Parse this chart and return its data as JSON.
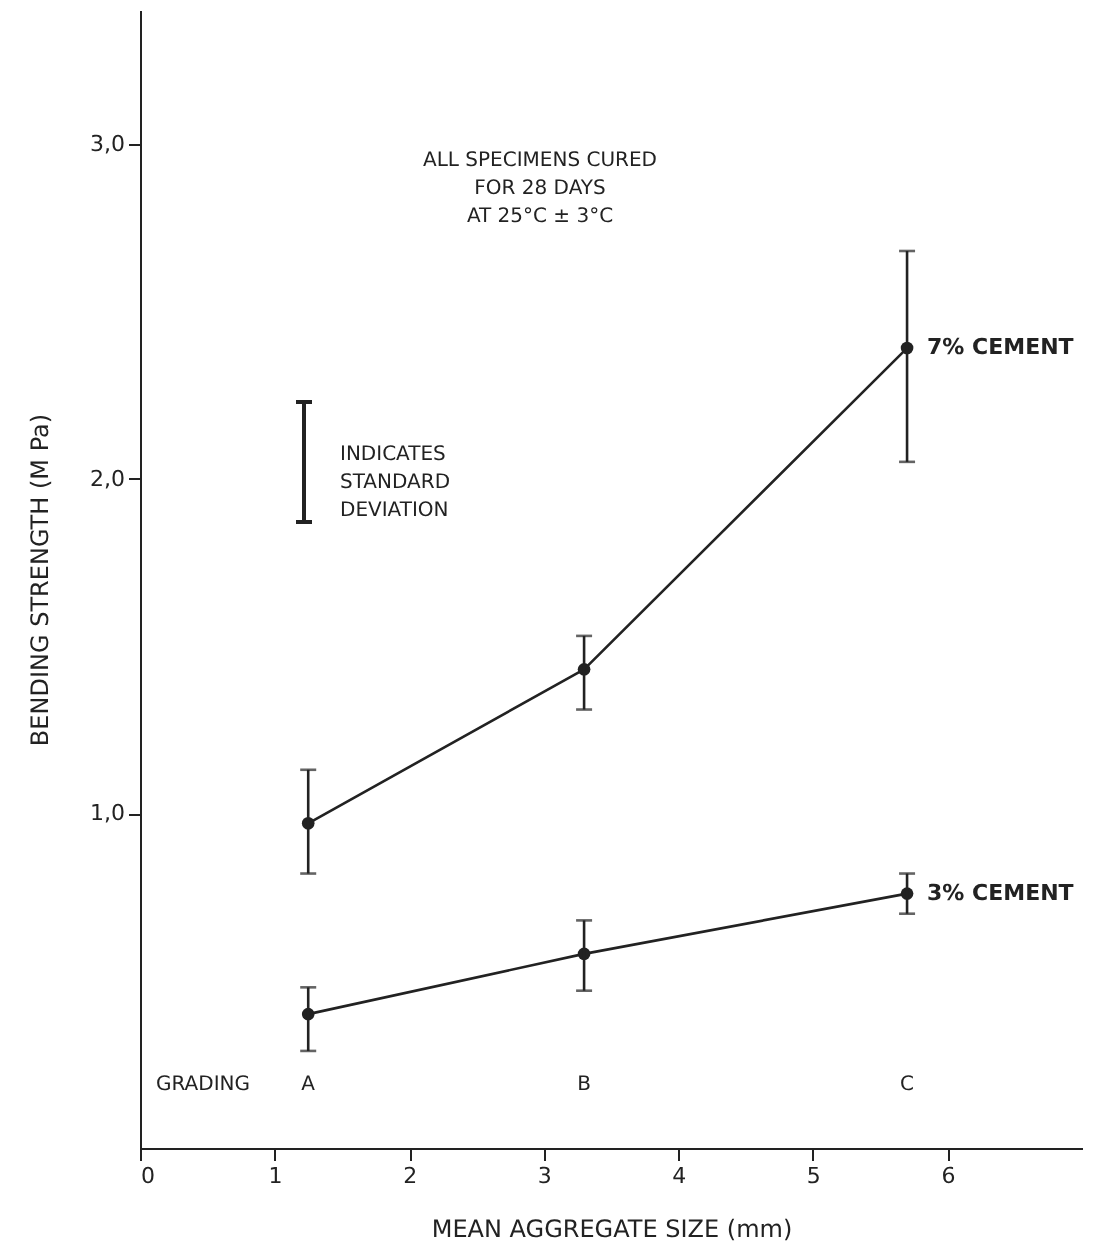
{
  "chart_data": {
    "type": "line",
    "xlabel": "MEAN AGGREGATE SIZE (mm)",
    "ylabel": "BENDING STRENGTH (M Pa)",
    "x": [
      1.25,
      3.3,
      5.7
    ],
    "series": [
      {
        "name": "7% CEMENT",
        "color": "#222222",
        "values": [
          0.97,
          1.43,
          2.39
        ],
        "errors": [
          [
            0.82,
            1.13
          ],
          [
            1.31,
            1.53
          ],
          [
            2.05,
            2.68
          ]
        ]
      },
      {
        "name": "3% CEMENT",
        "color": "#222222",
        "values": [
          0.4,
          0.58,
          0.76
        ],
        "errors": [
          [
            0.29,
            0.48
          ],
          [
            0.47,
            0.68
          ],
          [
            0.7,
            0.82
          ]
        ]
      }
    ],
    "xlim": [
      0,
      7
    ],
    "xticks": [
      0,
      1,
      2,
      3,
      4,
      5,
      6
    ],
    "ylim": [
      0,
      3.4
    ],
    "yticks": [
      {
        "value": 1,
        "label": "1,0"
      },
      {
        "value": 2,
        "label": "2,0"
      },
      {
        "value": 3,
        "label": "3,0"
      }
    ],
    "grid": false,
    "marker": "circle",
    "line_style": "solid",
    "annotations": [
      "ALL SPECIMENS CURED\nFOR 28 DAYS\nAT 25°C ± 3°C",
      "INDICATES\nSTANDARD\nDEVIATION",
      "GRADING",
      "A",
      "B",
      "C"
    ]
  }
}
